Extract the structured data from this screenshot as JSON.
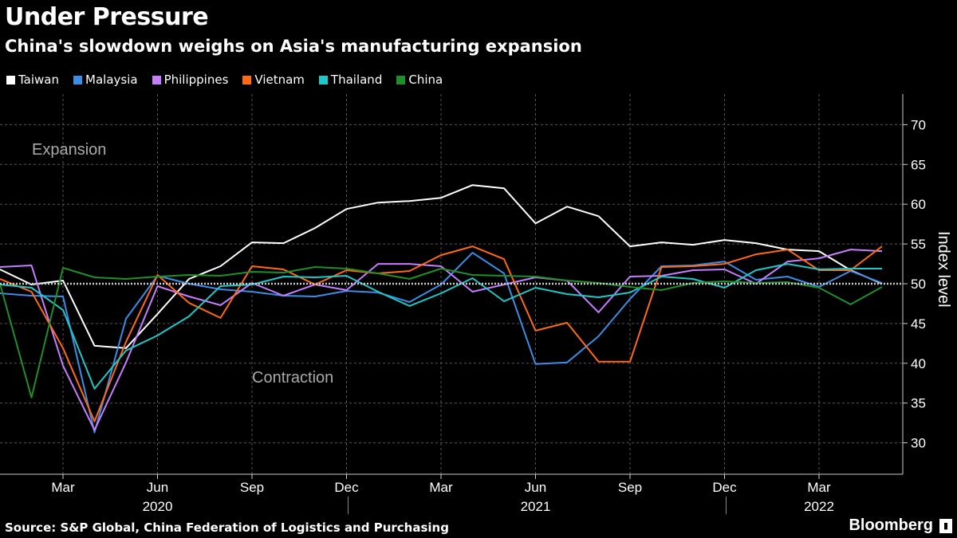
{
  "title": "Under Pressure",
  "subtitle": "China's slowdown weighs on Asia's manufacturing expansion",
  "source": "Source: S&P Global, China Federation of Logistics and Purchasing",
  "brand": "Bloomberg",
  "chart_data": {
    "type": "line",
    "ylabel": "Index level",
    "ylim": [
      25,
      73
    ],
    "yticks": [
      30,
      35,
      40,
      45,
      50,
      55,
      60,
      65,
      70
    ],
    "reference_line": 50,
    "grid": true,
    "legend_placement": "top-left",
    "annotations": [
      "Expansion",
      "Contraction"
    ],
    "x": [
      "2020-01",
      "2020-02",
      "2020-03",
      "2020-04",
      "2020-05",
      "2020-06",
      "2020-07",
      "2020-08",
      "2020-09",
      "2020-10",
      "2020-11",
      "2020-12",
      "2021-01",
      "2021-02",
      "2021-03",
      "2021-04",
      "2021-05",
      "2021-06",
      "2021-07",
      "2021-08",
      "2021-09",
      "2021-10",
      "2021-11",
      "2021-12",
      "2022-01",
      "2022-02",
      "2022-03",
      "2022-04",
      "2022-05"
    ],
    "xtick_labels": [
      {
        "month": "2020-03",
        "label": "Mar"
      },
      {
        "month": "2020-06",
        "label": "Jun"
      },
      {
        "month": "2020-09",
        "label": "Sep"
      },
      {
        "month": "2020-12",
        "label": "Dec"
      },
      {
        "month": "2021-03",
        "label": "Mar"
      },
      {
        "month": "2021-06",
        "label": "Jun"
      },
      {
        "month": "2021-09",
        "label": "Sep"
      },
      {
        "month": "2021-12",
        "label": "Dec"
      },
      {
        "month": "2022-03",
        "label": "Mar"
      }
    ],
    "year_labels": [
      {
        "month": "2020-06",
        "label": "2020"
      },
      {
        "month": "2021-06",
        "label": "2021"
      },
      {
        "month": "2022-03",
        "label": "2022"
      }
    ],
    "series": [
      {
        "name": "Taiwan",
        "color": "#ffffff",
        "values": [
          51.8,
          49.9,
          50.4,
          42.2,
          41.9,
          46.2,
          50.6,
          52.2,
          55.2,
          55.1,
          57.0,
          59.4,
          60.2,
          60.4,
          60.8,
          62.4,
          62.0,
          57.6,
          59.7,
          58.5,
          54.7,
          55.2,
          54.9,
          55.5,
          55.1,
          54.3,
          54.1,
          51.7,
          50.0
        ]
      },
      {
        "name": "Malaysia",
        "color": "#3a8ee6",
        "values": [
          48.8,
          48.5,
          48.4,
          31.3,
          45.6,
          51.0,
          50.0,
          49.3,
          49.0,
          48.5,
          48.4,
          49.1,
          48.9,
          47.7,
          49.9,
          53.9,
          51.3,
          39.9,
          40.1,
          43.4,
          48.1,
          52.2,
          52.3,
          52.8,
          50.5,
          50.9,
          49.6,
          51.6,
          50.1
        ]
      },
      {
        "name": "Philippines",
        "color": "#c77dff",
        "values": [
          52.1,
          52.3,
          39.7,
          31.6,
          40.1,
          49.7,
          48.4,
          47.3,
          50.1,
          48.5,
          49.9,
          49.2,
          52.5,
          52.5,
          52.2,
          49.0,
          49.9,
          50.8,
          50.4,
          46.4,
          50.9,
          51.0,
          51.7,
          51.8,
          50.0,
          52.8,
          53.2,
          54.3,
          54.1
        ]
      },
      {
        "name": "Vietnam",
        "color": "#ff6a13",
        "values": [
          50.6,
          49.0,
          41.9,
          32.7,
          42.7,
          51.1,
          47.6,
          45.7,
          52.2,
          51.8,
          49.9,
          51.7,
          51.3,
          51.6,
          53.6,
          54.7,
          53.1,
          44.1,
          45.1,
          40.2,
          40.2,
          52.1,
          52.2,
          52.5,
          53.7,
          54.3,
          51.7,
          51.7,
          54.7
        ]
      },
      {
        "name": "Thailand",
        "color": "#1fc8c8",
        "values": [
          49.9,
          49.5,
          46.7,
          36.8,
          41.6,
          43.5,
          45.9,
          49.7,
          49.9,
          50.9,
          50.8,
          51.0,
          49.0,
          47.2,
          48.8,
          50.7,
          47.8,
          49.5,
          48.7,
          48.3,
          48.9,
          50.9,
          50.6,
          49.5,
          51.7,
          52.5,
          51.8,
          51.9,
          51.9
        ]
      },
      {
        "name": "China",
        "color": "#1f8f2a",
        "values": [
          50.0,
          35.7,
          52.0,
          50.8,
          50.6,
          50.9,
          51.1,
          51.0,
          51.5,
          51.4,
          52.1,
          51.9,
          51.3,
          50.6,
          51.9,
          51.1,
          51.0,
          50.9,
          50.4,
          50.1,
          49.6,
          49.2,
          50.1,
          50.3,
          50.1,
          50.2,
          49.5,
          47.4,
          49.6
        ]
      }
    ]
  }
}
